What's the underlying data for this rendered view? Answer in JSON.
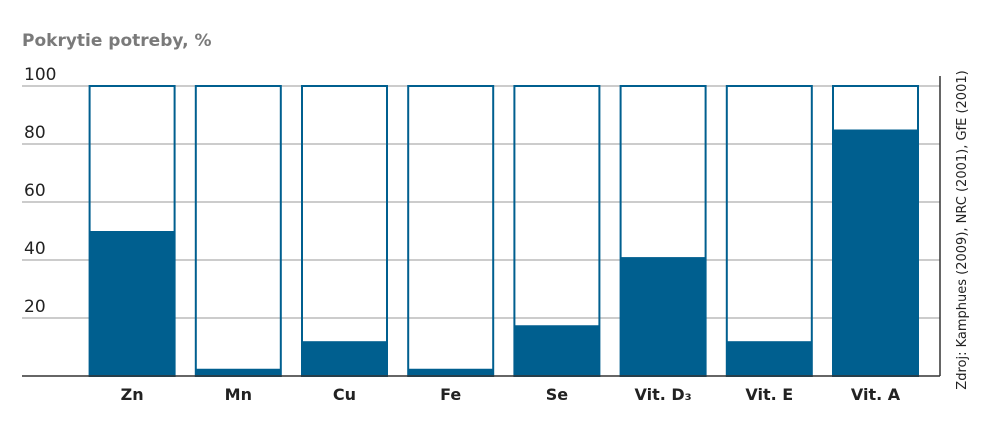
{
  "chart_data": {
    "type": "bar",
    "title": "Pokrytie potreby, %",
    "source": "Zdroj: Kamphues (2009), NRC (2001), GfE (2001)",
    "categories": [
      "Zn",
      "Mn",
      "Cu",
      "Fe",
      "Se",
      "Vit. D₃",
      "Vit. E",
      "Vit. A"
    ],
    "values": [
      50,
      2.5,
      12,
      2.5,
      17.5,
      41,
      12,
      85
    ],
    "color": "#005f8f",
    "ylim": [
      0,
      100
    ],
    "yticks": [
      20,
      40,
      60,
      80,
      100
    ],
    "grid": true
  }
}
